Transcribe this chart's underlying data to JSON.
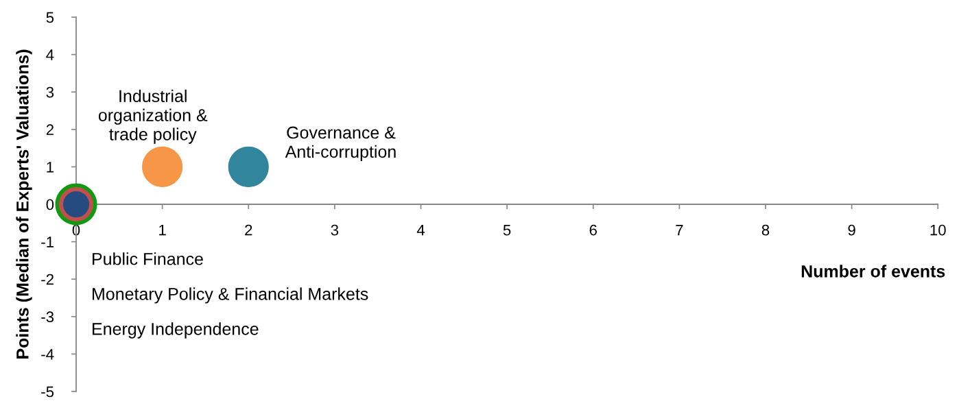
{
  "chart_data": {
    "type": "bubble",
    "xlabel": "Number of events",
    "ylabel": "Points (Median of Experts' Valuations)",
    "xlim": [
      0,
      10
    ],
    "ylim": [
      -5,
      5
    ],
    "xticks": [
      0,
      1,
      2,
      3,
      4,
      5,
      6,
      7,
      8,
      9,
      10
    ],
    "yticks": [
      -5,
      -4,
      -3,
      -2,
      -1,
      0,
      1,
      2,
      3,
      4,
      5
    ],
    "grid": false,
    "series": [
      {
        "color": "#119a11",
        "x": [
          0
        ],
        "values": [
          0
        ],
        "sizes": [
          1
        ]
      },
      {
        "color": "#c0504d",
        "x": [
          0
        ],
        "values": [
          0
        ],
        "sizes": [
          0.67
        ]
      },
      {
        "color": "#254b80",
        "x": [
          0
        ],
        "values": [
          0
        ],
        "sizes": [
          0.39
        ]
      },
      {
        "name": "Industrial organization & trade policy",
        "color": "#f79646",
        "x": [
          1
        ],
        "values": [
          1
        ],
        "sizes": [
          0.94
        ]
      },
      {
        "name": "Governance & Anti-corruption",
        "color": "#31859c",
        "x": [
          2
        ],
        "values": [
          1
        ],
        "sizes": [
          0.94
        ]
      }
    ],
    "annotations": [
      "Public Finance",
      "Monetary Policy & Financial Markets",
      "Energy Independence"
    ]
  }
}
